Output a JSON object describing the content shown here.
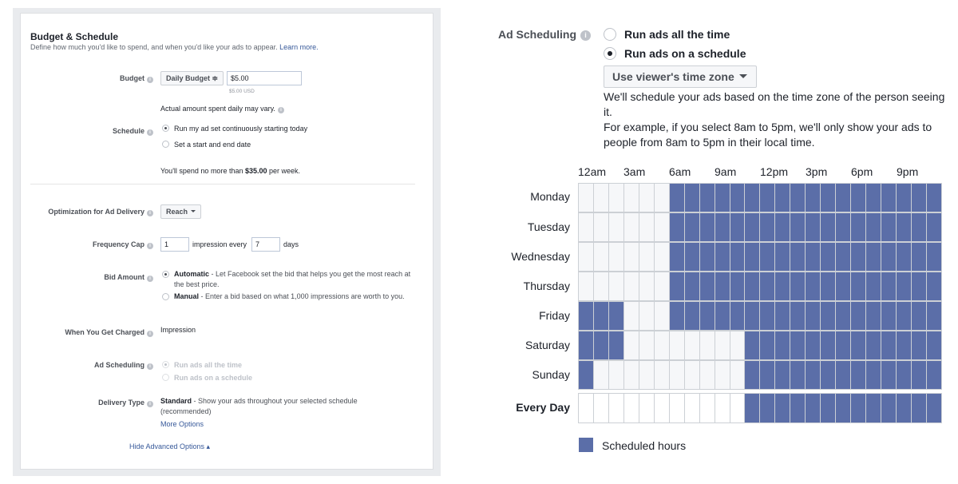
{
  "left": {
    "title": "Budget & Schedule",
    "description": "Define how much you'd like to spend, and when you'd like your ads to appear.",
    "learn_more": "Learn more.",
    "budget": {
      "label": "Budget",
      "type": "Daily Budget ≑",
      "value": "$5.00",
      "value_hint": "$5.00 USD",
      "note": "Actual amount spent daily may vary."
    },
    "schedule": {
      "label": "Schedule",
      "options": [
        "Run my ad set continuously starting today",
        "Set a start and end date"
      ],
      "selected": 0,
      "spend_prefix": "You'll spend no more than ",
      "spend_amount": "$35.00",
      "spend_suffix": " per week."
    },
    "optimization": {
      "label": "Optimization for Ad Delivery",
      "value": "Reach"
    },
    "frequency_cap": {
      "label": "Frequency Cap",
      "impressions": "1",
      "middle": "impression every",
      "days": "7",
      "suffix": "days"
    },
    "bid_amount": {
      "label": "Bid Amount",
      "auto_title": "Automatic",
      "auto_desc": " - Let Facebook set the bid that helps you get the most reach at the best price.",
      "manual_title": "Manual",
      "manual_desc": " - Enter a bid based on what 1,000 impressions are worth to you."
    },
    "charged": {
      "label": "When You Get Charged",
      "value": "Impression"
    },
    "ad_scheduling": {
      "label": "Ad Scheduling",
      "options": [
        "Run ads all the time",
        "Run ads on a schedule"
      ]
    },
    "delivery": {
      "label": "Delivery Type",
      "title": "Standard",
      "desc": " - Show your ads throughout your selected schedule (recommended)",
      "more": "More Options"
    },
    "hide_advanced": "Hide Advanced Options ▴"
  },
  "right": {
    "title": "Ad Scheduling",
    "options": [
      "Run ads all the time",
      "Run ads on a schedule"
    ],
    "selected": 1,
    "timezone_button": "Use viewer's time zone",
    "desc_1": "We'll schedule your ads based on the time zone of the person seeing it.",
    "desc_2": "For example, if you select 8am to 5pm, we'll only show your ads to people from 8am to 5pm in their local time.",
    "hour_labels": [
      "12am",
      "3am",
      "6am",
      "9am",
      "12pm",
      "3pm",
      "6pm",
      "9pm"
    ],
    "days": [
      {
        "name": "Monday",
        "start": 6,
        "extra": []
      },
      {
        "name": "Tuesday",
        "start": 6,
        "extra": []
      },
      {
        "name": "Wednesday",
        "start": 6,
        "extra": []
      },
      {
        "name": "Thursday",
        "start": 6,
        "extra": []
      },
      {
        "name": "Friday",
        "start": 6,
        "extra": [
          0,
          1,
          2
        ]
      },
      {
        "name": "Saturday",
        "start": 11,
        "extra": [
          0,
          1,
          2
        ]
      },
      {
        "name": "Sunday",
        "start": 11,
        "extra": [
          0
        ]
      }
    ],
    "every_day": {
      "name": "Every Day",
      "start": 11
    },
    "legend": "Scheduled hours",
    "colors": {
      "scheduled": "#5b6ea8",
      "unscheduled": "#f6f7f9"
    }
  }
}
